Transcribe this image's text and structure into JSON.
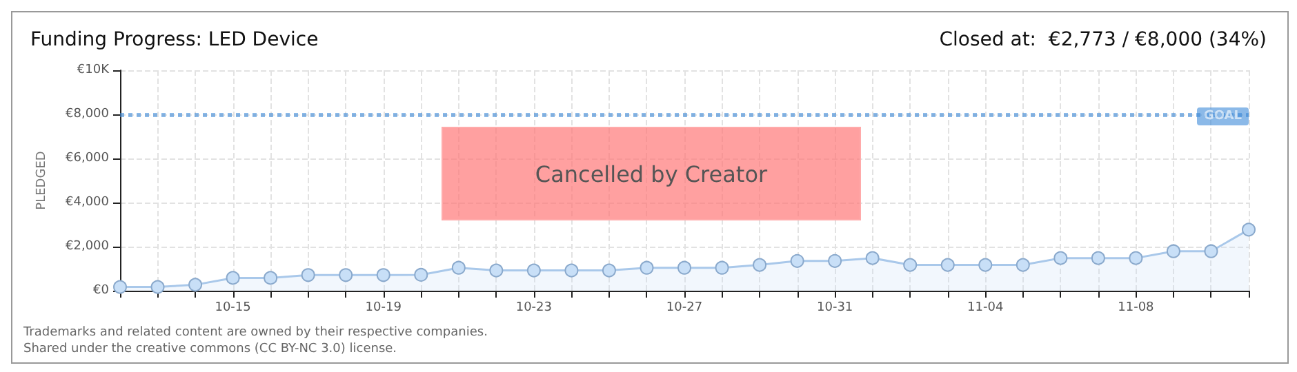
{
  "chart_data": {
    "type": "area",
    "title": "Funding Progress: LED Device",
    "subtitle": "Closed at:  €2,773 / €8,000 (34%)",
    "ylabel": "PLEDGED",
    "categories": [
      null,
      null,
      null,
      "10-15",
      null,
      null,
      null,
      "10-19",
      null,
      null,
      null,
      "10-23",
      null,
      null,
      null,
      "10-27",
      null,
      null,
      null,
      "10-31",
      null,
      null,
      null,
      "11-04",
      null,
      null,
      null,
      "11-08",
      null,
      null,
      null
    ],
    "series": [
      {
        "color": "#a9c8ea",
        "values": [
          170,
          170,
          270,
          580,
          580,
          710,
          710,
          710,
          720,
          1040,
          920,
          920,
          920,
          920,
          1040,
          1040,
          1040,
          1170,
          1350,
          1350,
          1480,
          1170,
          1170,
          1170,
          1170,
          1480,
          1480,
          1480,
          1790,
          1790,
          2770
        ]
      }
    ],
    "ylim": [
      0,
      10000
    ],
    "yticks": [
      {
        "value": 0,
        "label": "€0"
      },
      {
        "value": 2000,
        "label": "€2,000"
      },
      {
        "value": 4000,
        "label": "€4,000"
      },
      {
        "value": 6000,
        "label": "€6,000"
      },
      {
        "value": 8000,
        "label": "€8,000"
      },
      {
        "value": 10000,
        "label": "€10K"
      }
    ],
    "grid": true,
    "marker": "circle",
    "ref_lines": [
      {
        "axis": "y",
        "value": 8000,
        "label": "GOAL",
        "color": "#3d8bd9",
        "line_style": "dotted"
      }
    ],
    "annotations": [
      "Cancelled by Creator",
      "Trademarks and related content are owned by their respective companies.",
      "Shared under the creative commons (CC BY-NC 3.0) license."
    ]
  }
}
